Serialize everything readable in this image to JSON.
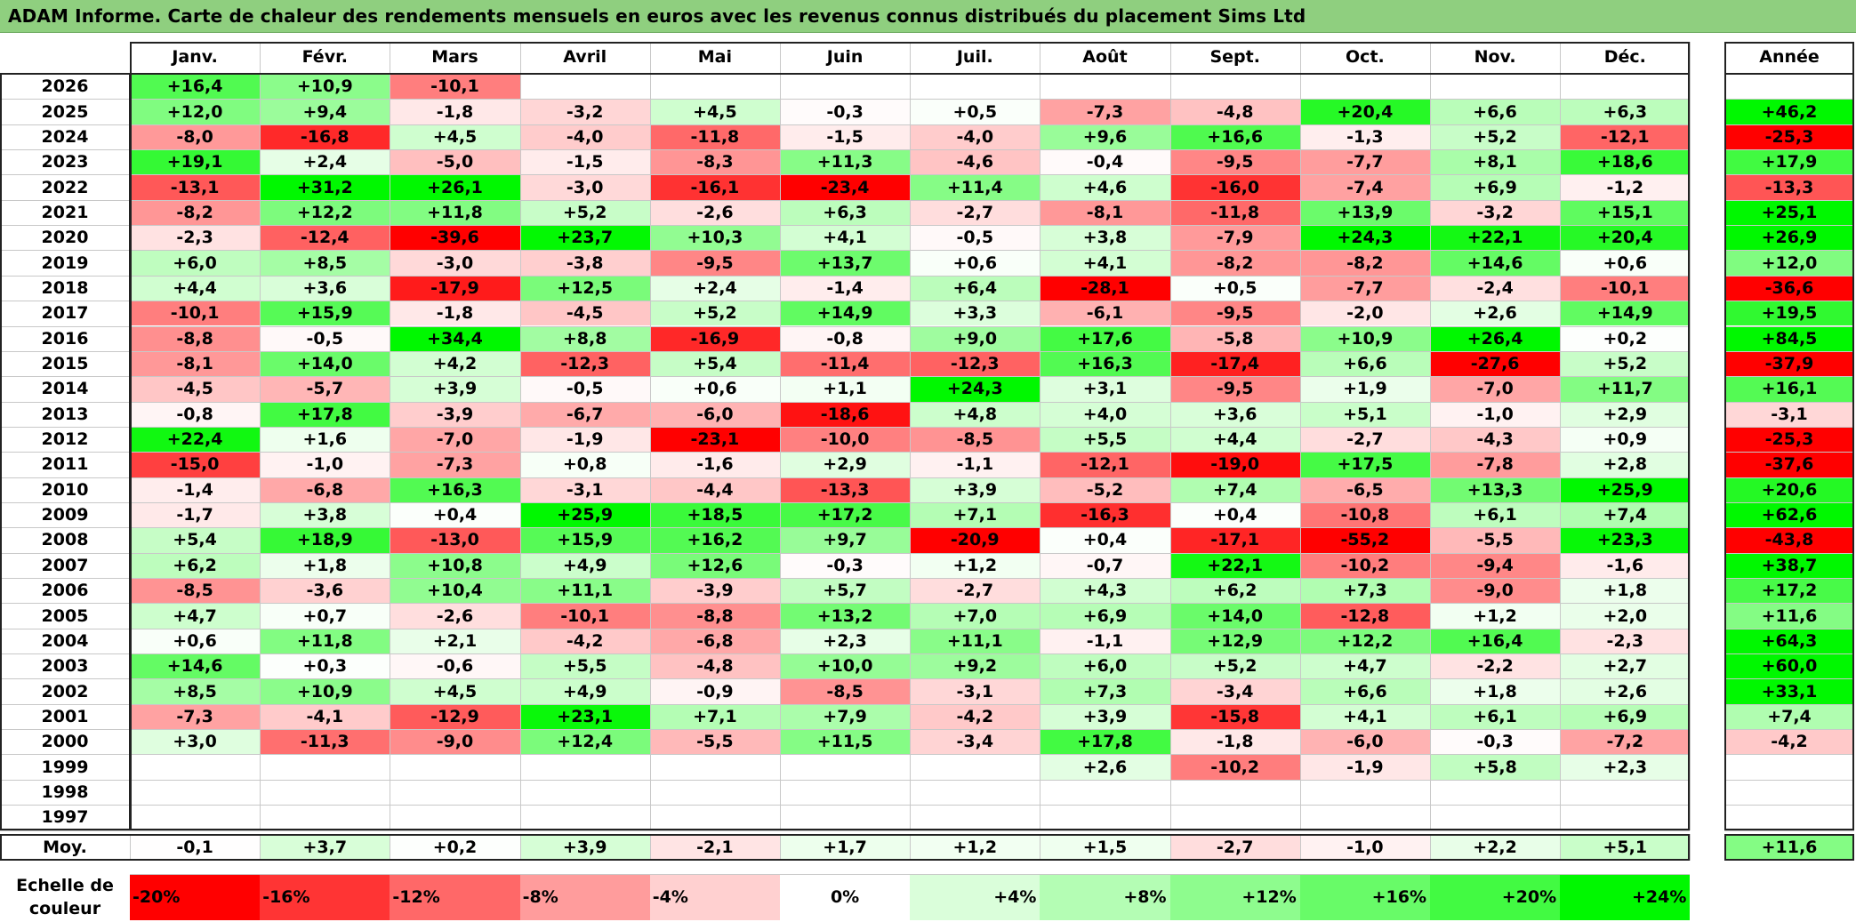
{
  "title": "ADAM Informe. Carte de chaleur des rendements mensuels en euros avec les revenus connus distribués du placement Sims Ltd",
  "chart_data": {
    "type": "heatmap",
    "title": "ADAM Informe. Carte de chaleur des rendements mensuels en euros avec les revenus connus distribués du placement Sims Ltd",
    "columns": [
      "Janv.",
      "Févr.",
      "Mars",
      "Avril",
      "Mai",
      "Juin",
      "Juil.",
      "Août",
      "Sept.",
      "Oct.",
      "Nov.",
      "Déc."
    ],
    "year_column_label": "Année",
    "rows": [
      {
        "year": "2026",
        "values": [
          "+16,4",
          "+10,9",
          "-10,1",
          "",
          "",
          "",
          "",
          "",
          "",
          "",
          "",
          ""
        ],
        "annual": ""
      },
      {
        "year": "2025",
        "values": [
          "+12,0",
          "+9,4",
          "-1,8",
          "-3,2",
          "+4,5",
          "-0,3",
          "+0,5",
          "-7,3",
          "-4,8",
          "+20,4",
          "+6,6",
          "+6,3"
        ],
        "annual": "+46,2"
      },
      {
        "year": "2024",
        "values": [
          "-8,0",
          "-16,8",
          "+4,5",
          "-4,0",
          "-11,8",
          "-1,5",
          "-4,0",
          "+9,6",
          "+16,6",
          "-1,3",
          "+5,2",
          "-12,1"
        ],
        "annual": "-25,3"
      },
      {
        "year": "2023",
        "values": [
          "+19,1",
          "+2,4",
          "-5,0",
          "-1,5",
          "-8,3",
          "+11,3",
          "-4,6",
          "-0,4",
          "-9,5",
          "-7,7",
          "+8,1",
          "+18,6"
        ],
        "annual": "+17,9"
      },
      {
        "year": "2022",
        "values": [
          "-13,1",
          "+31,2",
          "+26,1",
          "-3,0",
          "-16,1",
          "-23,4",
          "+11,4",
          "+4,6",
          "-16,0",
          "-7,4",
          "+6,9",
          "-1,2"
        ],
        "annual": "-13,3"
      },
      {
        "year": "2021",
        "values": [
          "-8,2",
          "+12,2",
          "+11,8",
          "+5,2",
          "-2,6",
          "+6,3",
          "-2,7",
          "-8,1",
          "-11,8",
          "+13,9",
          "-3,2",
          "+15,1"
        ],
        "annual": "+25,1"
      },
      {
        "year": "2020",
        "values": [
          "-2,3",
          "-12,4",
          "-39,6",
          "+23,7",
          "+10,3",
          "+4,1",
          "-0,5",
          "+3,8",
          "-7,9",
          "+24,3",
          "+22,1",
          "+20,4"
        ],
        "annual": "+26,9"
      },
      {
        "year": "2019",
        "values": [
          "+6,0",
          "+8,5",
          "-3,0",
          "-3,8",
          "-9,5",
          "+13,7",
          "+0,6",
          "+4,1",
          "-8,2",
          "-8,2",
          "+14,6",
          "+0,6"
        ],
        "annual": "+12,0"
      },
      {
        "year": "2018",
        "values": [
          "+4,4",
          "+3,6",
          "-17,9",
          "+12,5",
          "+2,4",
          "-1,4",
          "+6,4",
          "-28,1",
          "+0,5",
          "-7,7",
          "-2,4",
          "-10,1"
        ],
        "annual": "-36,6"
      },
      {
        "year": "2017",
        "values": [
          "-10,1",
          "+15,9",
          "-1,8",
          "-4,5",
          "+5,2",
          "+14,9",
          "+3,3",
          "-6,1",
          "-9,5",
          "-2,0",
          "+2,6",
          "+14,9"
        ],
        "annual": "+19,5"
      },
      {
        "year": "2016",
        "values": [
          "-8,8",
          "-0,5",
          "+34,4",
          "+8,8",
          "-16,9",
          "-0,8",
          "+9,0",
          "+17,6",
          "-5,8",
          "+10,9",
          "+26,4",
          "+0,2"
        ],
        "annual": "+84,5"
      },
      {
        "year": "2015",
        "values": [
          "-8,1",
          "+14,0",
          "+4,2",
          "-12,3",
          "+5,4",
          "-11,4",
          "-12,3",
          "+16,3",
          "-17,4",
          "+6,6",
          "-27,6",
          "+5,2"
        ],
        "annual": "-37,9"
      },
      {
        "year": "2014",
        "values": [
          "-4,5",
          "-5,7",
          "+3,9",
          "-0,5",
          "+0,6",
          "+1,1",
          "+24,3",
          "+3,1",
          "-9,5",
          "+1,9",
          "-7,0",
          "+11,7"
        ],
        "annual": "+16,1"
      },
      {
        "year": "2013",
        "values": [
          "-0,8",
          "+17,8",
          "-3,9",
          "-6,7",
          "-6,0",
          "-18,6",
          "+4,8",
          "+4,0",
          "+3,6",
          "+5,1",
          "-1,0",
          "+2,9"
        ],
        "annual": "-3,1"
      },
      {
        "year": "2012",
        "values": [
          "+22,4",
          "+1,6",
          "-7,0",
          "-1,9",
          "-23,1",
          "-10,0",
          "-8,5",
          "+5,5",
          "+4,4",
          "-2,7",
          "-4,3",
          "+0,9"
        ],
        "annual": "-25,3"
      },
      {
        "year": "2011",
        "values": [
          "-15,0",
          "-1,0",
          "-7,3",
          "+0,8",
          "-1,6",
          "+2,9",
          "-1,1",
          "-12,1",
          "-19,0",
          "+17,5",
          "-7,8",
          "+2,8"
        ],
        "annual": "-37,6"
      },
      {
        "year": "2010",
        "values": [
          "-1,4",
          "-6,8",
          "+16,3",
          "-3,1",
          "-4,4",
          "-13,3",
          "+3,9",
          "-5,2",
          "+7,4",
          "-6,5",
          "+13,3",
          "+25,9"
        ],
        "annual": "+20,6"
      },
      {
        "year": "2009",
        "values": [
          "-1,7",
          "+3,8",
          "+0,4",
          "+25,9",
          "+18,5",
          "+17,2",
          "+7,1",
          "-16,3",
          "+0,4",
          "-10,8",
          "+6,1",
          "+7,4"
        ],
        "annual": "+62,6"
      },
      {
        "year": "2008",
        "values": [
          "+5,4",
          "+18,9",
          "-13,0",
          "+15,9",
          "+16,2",
          "+9,7",
          "-20,9",
          "+0,4",
          "-17,1",
          "-55,2",
          "-5,5",
          "+23,3"
        ],
        "annual": "-43,8"
      },
      {
        "year": "2007",
        "values": [
          "+6,2",
          "+1,8",
          "+10,8",
          "+4,9",
          "+12,6",
          "-0,3",
          "+1,2",
          "-0,7",
          "+22,1",
          "-10,2",
          "-9,4",
          "-1,6"
        ],
        "annual": "+38,7"
      },
      {
        "year": "2006",
        "values": [
          "-8,5",
          "-3,6",
          "+10,4",
          "+11,1",
          "-3,9",
          "+5,7",
          "-2,7",
          "+4,3",
          "+6,2",
          "+7,3",
          "-9,0",
          "+1,8"
        ],
        "annual": "+17,2"
      },
      {
        "year": "2005",
        "values": [
          "+4,7",
          "+0,7",
          "-2,6",
          "-10,1",
          "-8,8",
          "+13,2",
          "+7,0",
          "+6,9",
          "+14,0",
          "-12,8",
          "+1,2",
          "+2,0"
        ],
        "annual": "+11,6"
      },
      {
        "year": "2004",
        "values": [
          "+0,6",
          "+11,8",
          "+2,1",
          "-4,2",
          "-6,8",
          "+2,3",
          "+11,1",
          "-1,1",
          "+12,9",
          "+12,2",
          "+16,4",
          "-2,3"
        ],
        "annual": "+64,3"
      },
      {
        "year": "2003",
        "values": [
          "+14,6",
          "+0,3",
          "-0,6",
          "+5,5",
          "-4,8",
          "+10,0",
          "+9,2",
          "+6,0",
          "+5,2",
          "+4,7",
          "-2,2",
          "+2,7"
        ],
        "annual": "+60,0"
      },
      {
        "year": "2002",
        "values": [
          "+8,5",
          "+10,9",
          "+4,5",
          "+4,9",
          "-0,9",
          "-8,5",
          "-3,1",
          "+7,3",
          "-3,4",
          "+6,6",
          "+1,8",
          "+2,6"
        ],
        "annual": "+33,1"
      },
      {
        "year": "2001",
        "values": [
          "-7,3",
          "-4,1",
          "-12,9",
          "+23,1",
          "+7,1",
          "+7,9",
          "-4,2",
          "+3,9",
          "-15,8",
          "+4,1",
          "+6,1",
          "+6,9"
        ],
        "annual": "+7,4"
      },
      {
        "year": "2000",
        "values": [
          "+3,0",
          "-11,3",
          "-9,0",
          "+12,4",
          "-5,5",
          "+11,5",
          "-3,4",
          "+17,8",
          "-1,8",
          "-6,0",
          "-0,3",
          "-7,2"
        ],
        "annual": "-4,2"
      },
      {
        "year": "1999",
        "values": [
          "",
          "",
          "",
          "",
          "",
          "",
          "",
          "+2,6",
          "-10,2",
          "-1,9",
          "+5,8",
          "+2,3"
        ],
        "annual": ""
      },
      {
        "year": "1998",
        "values": [
          "",
          "",
          "",
          "",
          "",
          "",
          "",
          "",
          "",
          "",
          "",
          ""
        ],
        "annual": ""
      },
      {
        "year": "1997",
        "values": [
          "",
          "",
          "",
          "",
          "",
          "",
          "",
          "",
          "",
          "",
          "",
          ""
        ],
        "annual": ""
      }
    ],
    "average": {
      "label": "Moy.",
      "values": [
        "-0,1",
        "+3,7",
        "+0,2",
        "+3,9",
        "-2,1",
        "+1,7",
        "+1,2",
        "+1,5",
        "-2,7",
        "-1,0",
        "+2,2",
        "+5,1"
      ],
      "annual": "+11,6"
    },
    "color_scale": {
      "label_line1": "Echelle de",
      "label_line2": "couleur",
      "stops": [
        {
          "label": "-20%",
          "value": -20,
          "color": "#ff0000"
        },
        {
          "label": "-16%",
          "value": -16,
          "color": "#ff3434"
        },
        {
          "label": "-12%",
          "value": -12,
          "color": "#ff6868"
        },
        {
          "label": "-8%",
          "value": -8,
          "color": "#ff9c9c"
        },
        {
          "label": "-4%",
          "value": -4,
          "color": "#ffd0d0"
        },
        {
          "label": "0%",
          "value": 0,
          "color": "#ffffff"
        },
        {
          "label": "+4%",
          "value": 4,
          "color": "#dafeda"
        },
        {
          "label": "+8%",
          "value": 8,
          "color": "#b4fdb4"
        },
        {
          "label": "+12%",
          "value": 12,
          "color": "#8efc8e"
        },
        {
          "label": "+16%",
          "value": 16,
          "color": "#68fb68"
        },
        {
          "label": "+20%",
          "value": 20,
          "color": "#42fa42"
        },
        {
          "label": "+24%",
          "value": 24,
          "color": "#00f800"
        }
      ]
    }
  }
}
